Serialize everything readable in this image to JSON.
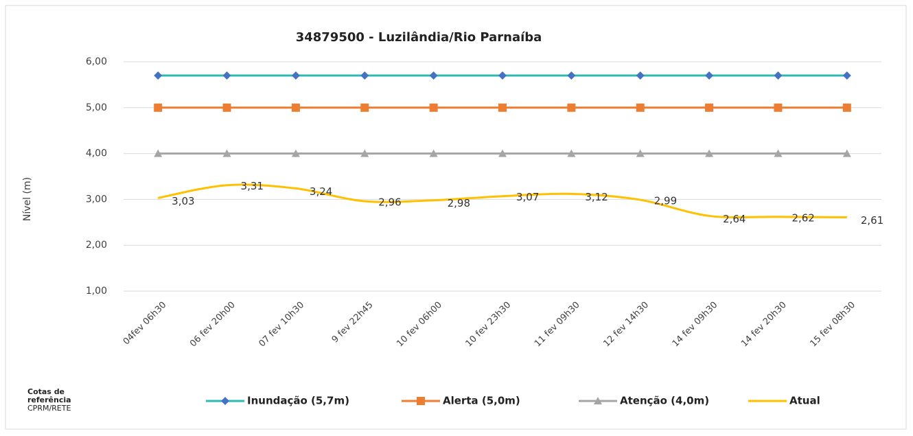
{
  "chart_data": {
    "type": "line",
    "title": "34879500 - Luzilândia/Rio Parnaíba",
    "y_label": "Nível (m)",
    "note_title": "Cotas de referência",
    "note_source": "CPRM/RETE",
    "categories": [
      "04fev 06h30",
      "06 fev 20h00",
      "07 fev 10h30",
      "9 fev 22h45",
      "10 fev 06h00",
      "10 fev 23h30",
      "11 fev 09h30",
      "12 fev 14h30",
      "14 fev 09h30",
      "14 fev 20h30",
      "15 fev 08h30"
    ],
    "series": [
      {
        "name": "Inundação (5,7m)",
        "color": "#2eb8b0",
        "marker": "diamond",
        "marker_color": "#4472c4",
        "values": [
          5.7,
          5.7,
          5.7,
          5.7,
          5.7,
          5.7,
          5.7,
          5.7,
          5.7,
          5.7,
          5.7
        ]
      },
      {
        "name": "Alerta (5,0m)",
        "color": "#ed7d31",
        "marker": "square",
        "marker_color": "#ed7d31",
        "values": [
          5,
          5,
          5,
          5,
          5,
          5,
          5,
          5,
          5,
          5,
          5
        ]
      },
      {
        "name": "Atenção (4,0m)",
        "color": "#a5a5a5",
        "marker": "triangle",
        "marker_color": "#a5a5a5",
        "values": [
          4,
          4,
          4,
          4,
          4,
          4,
          4,
          4,
          4,
          4,
          4
        ]
      },
      {
        "name": "Atual",
        "color": "#ffc000",
        "smooth": true,
        "values": [
          3.03,
          3.31,
          3.24,
          2.96,
          2.98,
          3.07,
          3.12,
          2.99,
          2.64,
          2.62,
          2.61
        ],
        "value_labels": [
          "3,03",
          "3,31",
          "3,24",
          "2,96",
          "2,98",
          "3,07",
          "3,12",
          "2,99",
          "2,64",
          "2,62",
          "2,61"
        ]
      }
    ],
    "ylim": [
      1,
      6
    ],
    "yticks": [
      {
        "value": 1,
        "label": "1,00"
      },
      {
        "value": 2,
        "label": "2,00"
      },
      {
        "value": 3,
        "label": "3,00"
      },
      {
        "value": 4,
        "label": "4,00"
      },
      {
        "value": 5,
        "label": "5,00"
      },
      {
        "value": 6,
        "label": "6,00"
      }
    ],
    "grid": true
  }
}
